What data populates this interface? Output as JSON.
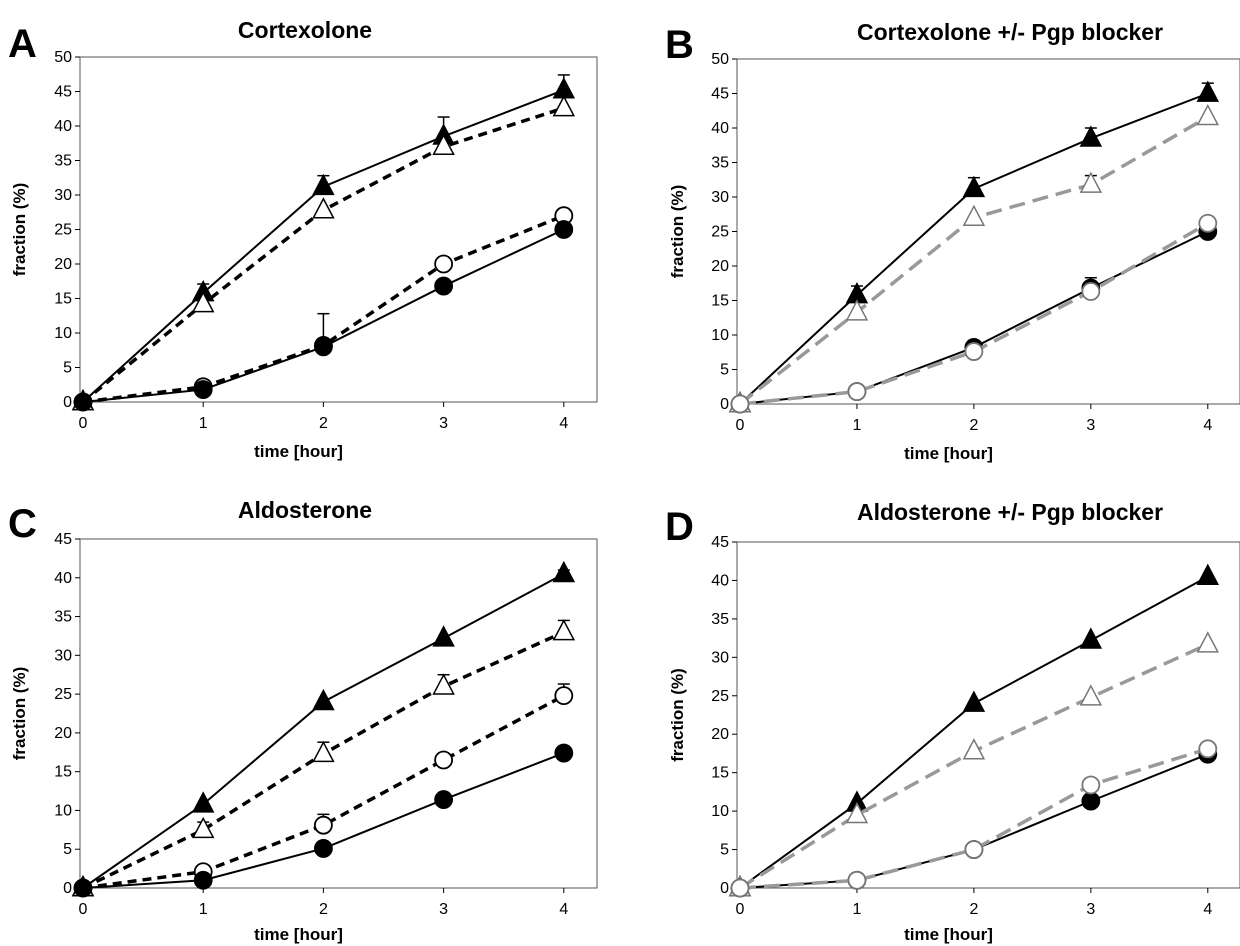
{
  "chart_data": [
    {
      "panel": "A",
      "type": "line",
      "title": "Cortexolone",
      "xlabel": "time [hour]",
      "ylabel": "fraction (%)",
      "x": [
        0,
        1,
        2,
        3,
        4
      ],
      "xlim": [
        0,
        4
      ],
      "ylim": [
        0,
        50
      ],
      "yticks": [
        0,
        5,
        10,
        15,
        20,
        25,
        30,
        35,
        40,
        45,
        50
      ],
      "grid": false,
      "series": [
        {
          "marker": "triangle",
          "fill": "#000000",
          "line_color": "#000000",
          "dash": "solid",
          "values": [
            0,
            15.8,
            31.2,
            38.5,
            45.2
          ],
          "error": [
            0,
            1.3,
            1.6,
            2.8,
            2.2
          ]
        },
        {
          "marker": "triangle",
          "fill": "#ffffff",
          "line_color": "#000000",
          "dash": "dashed",
          "values": [
            0,
            14.2,
            27.8,
            37.0,
            42.6
          ],
          "error": [
            0,
            0,
            0,
            0,
            0
          ]
        },
        {
          "marker": "circle",
          "fill": "#ffffff",
          "line_color": "#000000",
          "dash": "dashed",
          "values": [
            0,
            2.2,
            8.2,
            20.0,
            27.0
          ],
          "error": [
            0,
            0,
            0,
            0,
            0
          ]
        },
        {
          "marker": "circle",
          "fill": "#000000",
          "line_color": "#000000",
          "dash": "solid",
          "values": [
            0,
            1.8,
            8.0,
            16.8,
            25.0
          ],
          "error": [
            0,
            0.5,
            4.8,
            0.6,
            1.0
          ]
        }
      ]
    },
    {
      "panel": "B",
      "type": "line",
      "title": "Cortexolone +/- Pgp blocker",
      "xlabel": "time [hour]",
      "ylabel": "fraction (%)",
      "x": [
        0,
        1,
        2,
        3,
        4
      ],
      "xlim": [
        0,
        4
      ],
      "ylim": [
        0,
        50
      ],
      "yticks": [
        0,
        5,
        10,
        15,
        20,
        25,
        30,
        35,
        40,
        45,
        50
      ],
      "grid": false,
      "series": [
        {
          "marker": "triangle",
          "fill": "#000000",
          "line_color": "#000000",
          "dash": "solid",
          "values": [
            0,
            15.8,
            31.2,
            38.5,
            45.0
          ],
          "error": [
            0,
            1.3,
            1.6,
            1.5,
            1.5
          ]
        },
        {
          "marker": "triangle",
          "fill": "#ffffff",
          "line_color": "#999999",
          "dash": "dashed",
          "values": [
            0,
            13.3,
            27.0,
            31.8,
            41.6
          ],
          "error": [
            0,
            0,
            0,
            1.3,
            0
          ]
        },
        {
          "marker": "circle",
          "fill": "#000000",
          "line_color": "#000000",
          "dash": "solid",
          "values": [
            0,
            1.8,
            8.2,
            16.8,
            25.0
          ],
          "error": [
            0,
            0,
            0,
            0,
            1.0
          ]
        },
        {
          "marker": "circle",
          "fill": "#ffffff",
          "line_color": "#999999",
          "dash": "dashed",
          "values": [
            0,
            1.8,
            7.6,
            16.3,
            26.2
          ],
          "error": [
            0,
            0,
            0,
            2.0,
            0
          ]
        }
      ]
    },
    {
      "panel": "C",
      "type": "line",
      "title": "Aldosterone",
      "xlabel": "time [hour]",
      "ylabel": "fraction (%)",
      "x": [
        0,
        1,
        2,
        3,
        4
      ],
      "xlim": [
        0,
        4
      ],
      "ylim": [
        0,
        45
      ],
      "yticks": [
        0,
        5,
        10,
        15,
        20,
        25,
        30,
        35,
        40,
        45
      ],
      "grid": false,
      "series": [
        {
          "marker": "triangle",
          "fill": "#000000",
          "line_color": "#000000",
          "dash": "solid",
          "values": [
            0,
            10.8,
            24.0,
            32.2,
            40.5
          ],
          "error": [
            0,
            0,
            0,
            0,
            0.5
          ]
        },
        {
          "marker": "triangle",
          "fill": "#ffffff",
          "line_color": "#000000",
          "dash": "dashed",
          "values": [
            0,
            7.5,
            17.3,
            26.0,
            33.0
          ],
          "error": [
            0,
            1.0,
            1.5,
            1.5,
            1.5
          ]
        },
        {
          "marker": "circle",
          "fill": "#ffffff",
          "line_color": "#000000",
          "dash": "dashed",
          "values": [
            0,
            2.1,
            8.1,
            16.5,
            24.8
          ],
          "error": [
            0,
            0,
            1.4,
            0,
            1.5
          ]
        },
        {
          "marker": "circle",
          "fill": "#000000",
          "line_color": "#000000",
          "dash": "solid",
          "values": [
            0,
            1.0,
            5.1,
            11.4,
            17.4
          ],
          "error": [
            0,
            0,
            0,
            0,
            0
          ]
        }
      ]
    },
    {
      "panel": "D",
      "type": "line",
      "title": "Aldosterone +/- Pgp blocker",
      "xlabel": "time [hour]",
      "ylabel": "fraction (%)",
      "x": [
        0,
        1,
        2,
        3,
        4
      ],
      "xlim": [
        0,
        4
      ],
      "ylim": [
        0,
        45
      ],
      "yticks": [
        0,
        5,
        10,
        15,
        20,
        25,
        30,
        35,
        40,
        45
      ],
      "grid": false,
      "series": [
        {
          "marker": "triangle",
          "fill": "#000000",
          "line_color": "#000000",
          "dash": "solid",
          "values": [
            0,
            11.0,
            24.0,
            32.2,
            40.5
          ],
          "error": [
            0,
            0,
            0,
            0,
            0
          ]
        },
        {
          "marker": "triangle",
          "fill": "#ffffff",
          "line_color": "#999999",
          "dash": "dashed",
          "values": [
            0,
            9.5,
            17.8,
            24.8,
            31.7
          ],
          "error": [
            0,
            0,
            0,
            0,
            0
          ]
        },
        {
          "marker": "circle",
          "fill": "#000000",
          "line_color": "#000000",
          "dash": "solid",
          "values": [
            0,
            1.0,
            5.0,
            11.3,
            17.4
          ],
          "error": [
            0,
            0,
            0,
            0,
            0
          ]
        },
        {
          "marker": "circle",
          "fill": "#ffffff",
          "line_color": "#999999",
          "dash": "dashed",
          "values": [
            0,
            1.0,
            5.0,
            13.4,
            18.1
          ],
          "error": [
            0,
            0,
            0,
            0,
            0
          ]
        }
      ]
    }
  ]
}
